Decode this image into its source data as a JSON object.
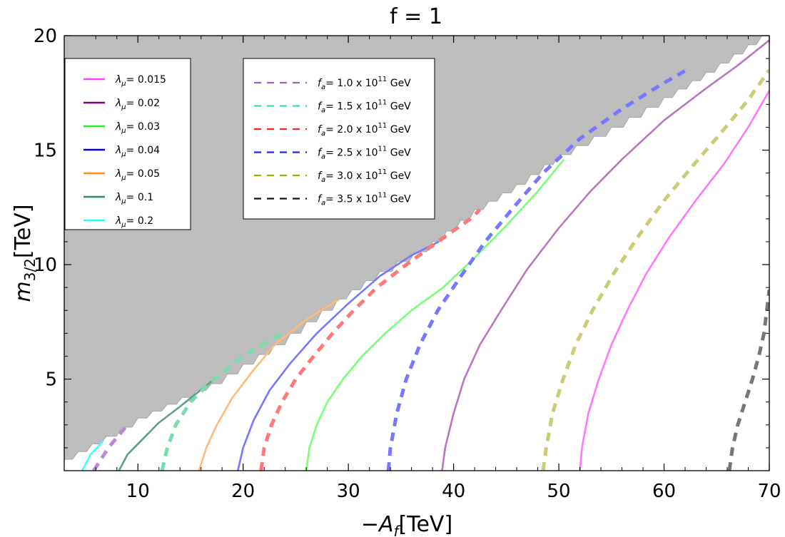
{
  "chart_data": {
    "type": "line",
    "title": "f = 1",
    "xlabel": "−A_f[TeV]",
    "ylabel": "m_3/2[TeV]",
    "xlim": [
      3,
      70
    ],
    "ylim": [
      1,
      20
    ],
    "xticks": [
      10,
      20,
      30,
      40,
      50,
      60,
      70
    ],
    "yticks": [
      5,
      10,
      15,
      20
    ],
    "excluded_region": {
      "color": "#bdbdbd",
      "boundary": [
        [
          3,
          1.5
        ],
        [
          7,
          2.5
        ],
        [
          10,
          3.3
        ],
        [
          17,
          4.8
        ],
        [
          23,
          6.5
        ],
        [
          29,
          8.5
        ],
        [
          33,
          9.7
        ],
        [
          38,
          11.0
        ],
        [
          42,
          12.4
        ],
        [
          46,
          13.5
        ],
        [
          50,
          14.8
        ],
        [
          55,
          16.0
        ],
        [
          60,
          17.3
        ],
        [
          64,
          18.4
        ],
        [
          68,
          19.6
        ],
        [
          69.3,
          20
        ]
      ]
    },
    "legend_lambda": [
      {
        "symbol": "λ",
        "sub": "μ",
        "text": "= 0.015",
        "color": "#ff40ff"
      },
      {
        "symbol": "λ",
        "sub": "μ",
        "text": "= 0.02",
        "color": "#800080"
      },
      {
        "symbol": "λ",
        "sub": "μ",
        "text": "= 0.03",
        "color": "#22ee22"
      },
      {
        "symbol": "λ",
        "sub": "μ",
        "text": "= 0.04",
        "color": "#0000ee"
      },
      {
        "symbol": "λ",
        "sub": "μ",
        "text": "= 0.05",
        "color": "#ff8c1a"
      },
      {
        "symbol": "λ",
        "sub": "μ",
        "text": "= 0.1",
        "color": "#2e8b77"
      },
      {
        "symbol": "λ",
        "sub": "μ",
        "text": "= 0.2",
        "color": "#22ffff"
      }
    ],
    "legend_fa": [
      {
        "symbol": "f",
        "sub": "a",
        "text": "= 1.0 x 10",
        "exp": "11",
        "unit": "GeV",
        "color": "#a060c0"
      },
      {
        "symbol": "f",
        "sub": "a",
        "text": "= 1.5 x 10",
        "exp": "11",
        "unit": "GeV",
        "color": "#22ee88"
      },
      {
        "symbol": "f",
        "sub": "a",
        "text": "= 2.0 x 10",
        "exp": "11",
        "unit": "GeV",
        "color": "#ff2222"
      },
      {
        "symbol": "f",
        "sub": "a",
        "text": "= 2.5 x 10",
        "exp": "11",
        "unit": "GeV",
        "color": "#2222ff"
      },
      {
        "symbol": "f",
        "sub": "a",
        "text": "= 3.0 x 10",
        "exp": "11",
        "unit": "GeV",
        "color": "#aaaa00"
      },
      {
        "symbol": "f",
        "sub": "a",
        "text": "= 3.5 x 10",
        "exp": "11",
        "unit": "GeV",
        "color": "#111111"
      }
    ],
    "series": [
      {
        "name": "λμ = 0.2",
        "style": "solid",
        "color": "#44ffff",
        "points": [
          [
            4.7,
            1
          ],
          [
            5.5,
            1.7
          ],
          [
            6.7,
            2.3
          ]
        ]
      },
      {
        "name": "λμ = 0.1",
        "style": "solid",
        "color": "#5f9e8f",
        "points": [
          [
            8.2,
            1
          ],
          [
            9,
            1.7
          ],
          [
            10.5,
            2.4
          ],
          [
            12,
            3.1
          ],
          [
            14,
            3.8
          ],
          [
            17,
            4.9
          ]
        ]
      },
      {
        "name": "λμ = 0.05",
        "style": "solid",
        "color": "#ffbb77",
        "points": [
          [
            15.8,
            1
          ],
          [
            16.5,
            2
          ],
          [
            17.5,
            3
          ],
          [
            19,
            4.2
          ],
          [
            21,
            5.4
          ],
          [
            23,
            6.5
          ],
          [
            26,
            7.6
          ],
          [
            29.2,
            8.5
          ]
        ]
      },
      {
        "name": "λμ = 0.04",
        "style": "solid",
        "color": "#7777ff",
        "points": [
          [
            19.5,
            1
          ],
          [
            20,
            2
          ],
          [
            21,
            3.2
          ],
          [
            22.5,
            4.5
          ],
          [
            24.5,
            5.7
          ],
          [
            27,
            7
          ],
          [
            30,
            8.3
          ],
          [
            33,
            9.5
          ],
          [
            36,
            10.4
          ],
          [
            38.6,
            11
          ]
        ]
      },
      {
        "name": "λμ = 0.03",
        "style": "solid",
        "color": "#77ff77",
        "points": [
          [
            26,
            1
          ],
          [
            26.3,
            2
          ],
          [
            27,
            3
          ],
          [
            28,
            4
          ],
          [
            29.5,
            5
          ],
          [
            31.3,
            6
          ],
          [
            33.5,
            7
          ],
          [
            36,
            8
          ],
          [
            39,
            9
          ],
          [
            42,
            10.3
          ],
          [
            45,
            11.7
          ],
          [
            48,
            13.2
          ],
          [
            50.5,
            14.6
          ]
        ]
      },
      {
        "name": "λμ = 0.02",
        "style": "solid",
        "color": "#bb77bb",
        "points": [
          [
            38.9,
            1
          ],
          [
            39.2,
            2
          ],
          [
            40,
            3.5
          ],
          [
            41,
            5
          ],
          [
            42.5,
            6.5
          ],
          [
            44.5,
            8
          ],
          [
            47,
            9.8
          ],
          [
            50,
            11.6
          ],
          [
            53,
            13.2
          ],
          [
            56,
            14.6
          ],
          [
            60,
            16.3
          ],
          [
            64,
            17.7
          ],
          [
            67,
            18.7
          ],
          [
            70,
            19.8
          ]
        ]
      },
      {
        "name": "λμ = 0.015",
        "style": "solid",
        "color": "#ff77ff",
        "points": [
          [
            52,
            1
          ],
          [
            52.2,
            2
          ],
          [
            52.8,
            3.5
          ],
          [
            53.8,
            5
          ],
          [
            55,
            6.5
          ],
          [
            56.5,
            8
          ],
          [
            58.3,
            9.6
          ],
          [
            60.5,
            11.2
          ],
          [
            63,
            12.8
          ],
          [
            65.7,
            14.4
          ],
          [
            68,
            16
          ],
          [
            70,
            17.6
          ]
        ]
      },
      {
        "name": "fa = 1.0 x 10^11 GeV",
        "style": "dash",
        "color": "#bb88dd",
        "points": [
          [
            5.8,
            1
          ],
          [
            7.2,
            2
          ],
          [
            9,
            3
          ]
        ]
      },
      {
        "name": "fa = 1.5 x 10^11 GeV",
        "style": "dash",
        "color": "#77ddaa",
        "points": [
          [
            12.3,
            1
          ],
          [
            12.8,
            2
          ],
          [
            13.6,
            3
          ],
          [
            15,
            4
          ],
          [
            17.2,
            5
          ],
          [
            20,
            6
          ],
          [
            23.7,
            7
          ]
        ]
      },
      {
        "name": "fa = 2.0 x 10^11 GeV",
        "style": "dash",
        "color": "#ff7777",
        "points": [
          [
            21.7,
            1
          ],
          [
            22,
            2
          ],
          [
            22.7,
            3
          ],
          [
            23.7,
            4
          ],
          [
            25,
            5
          ],
          [
            26.7,
            6
          ],
          [
            28.5,
            7
          ],
          [
            30.5,
            8
          ],
          [
            32.7,
            9
          ],
          [
            35.5,
            10
          ],
          [
            38.5,
            11
          ],
          [
            41.6,
            12
          ],
          [
            42.5,
            12.4
          ]
        ]
      },
      {
        "name": "fa = 2.5 x 10^11 GeV",
        "style": "dash",
        "color": "#7777ff",
        "points": [
          [
            33.8,
            1
          ],
          [
            34,
            2
          ],
          [
            34.6,
            3.5
          ],
          [
            35.5,
            5
          ],
          [
            36.8,
            6.5
          ],
          [
            38.5,
            8
          ],
          [
            40.7,
            9.5
          ],
          [
            43,
            11
          ],
          [
            45.7,
            12.5
          ],
          [
            48.5,
            14
          ],
          [
            52,
            15.5
          ],
          [
            56,
            16.8
          ],
          [
            59.5,
            17.8
          ],
          [
            62.5,
            18.6
          ]
        ]
      },
      {
        "name": "fa = 3.0 x 10^11 GeV",
        "style": "dash",
        "color": "#cccc77",
        "points": [
          [
            48.5,
            1
          ],
          [
            48.8,
            2
          ],
          [
            49.4,
            3.5
          ],
          [
            50.4,
            5
          ],
          [
            51.6,
            6.5
          ],
          [
            53.2,
            8
          ],
          [
            55.2,
            9.6
          ],
          [
            57.5,
            11.2
          ],
          [
            60,
            12.8
          ],
          [
            62.7,
            14.3
          ],
          [
            65.5,
            15.8
          ],
          [
            68,
            17.2
          ],
          [
            70,
            18.5
          ]
        ]
      },
      {
        "name": "fa = 3.5 x 10^11 GeV",
        "style": "dash",
        "color": "#777777",
        "points": [
          [
            66.2,
            1
          ],
          [
            66.5,
            2
          ],
          [
            67,
            3
          ],
          [
            67.7,
            4
          ],
          [
            68.4,
            5
          ],
          [
            69,
            6
          ],
          [
            69.5,
            7
          ],
          [
            70,
            8.9
          ]
        ]
      }
    ]
  }
}
